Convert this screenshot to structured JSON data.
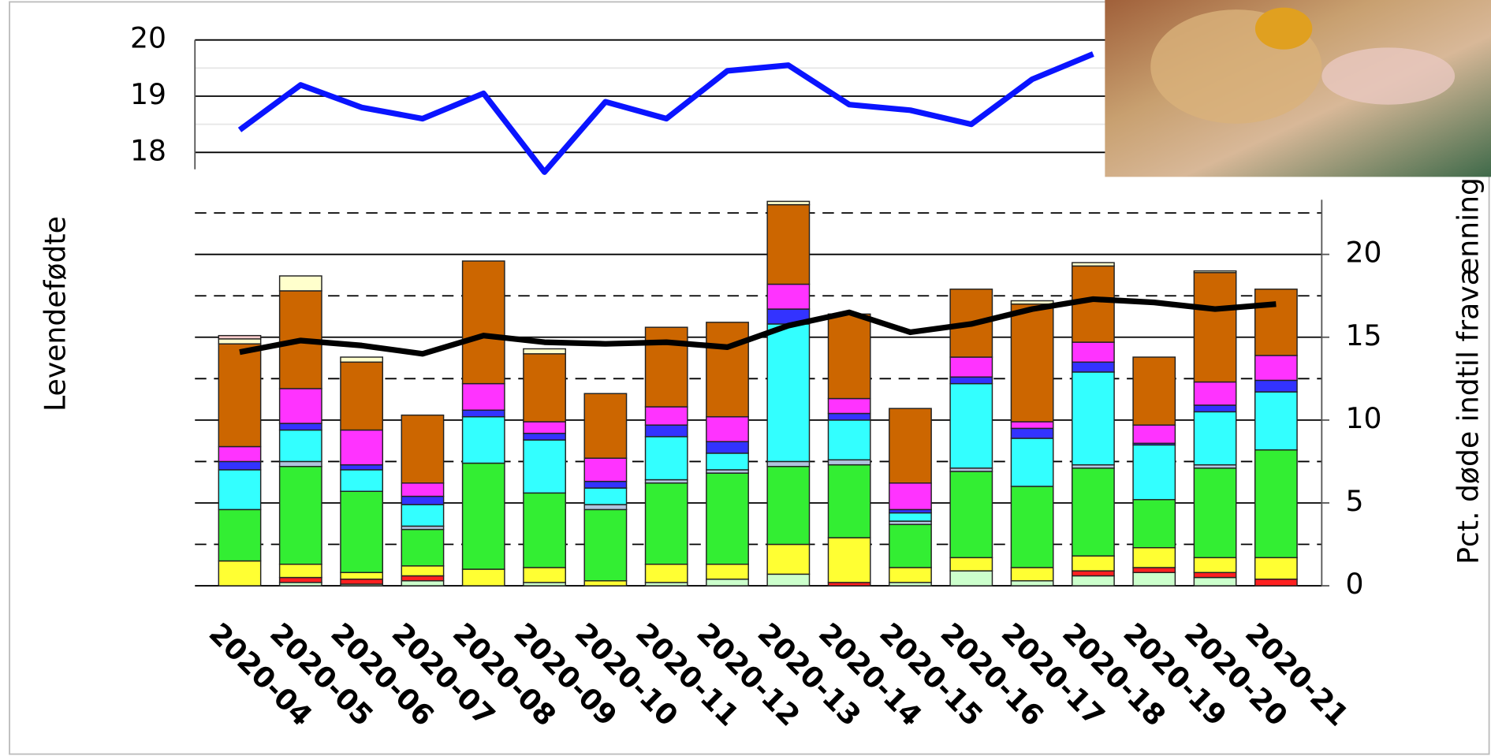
{
  "chart_data": [
    {
      "type": "line",
      "ylabel": "Levendefødte",
      "color": "#0a14ff",
      "values": [
        18.4,
        19.2,
        18.8,
        18.6,
        19.05,
        17.65,
        18.9,
        18.6,
        19.45,
        19.55,
        18.85,
        18.75,
        18.5,
        19.3,
        19.75,
        null,
        null,
        null
      ],
      "ylim": [
        17.7,
        20
      ],
      "yticks": [
        18,
        19,
        20
      ],
      "yminorticks": [
        18.5,
        19.5
      ],
      "grid": true
    },
    {
      "type": "bar",
      "stacked": true,
      "ylabel": "Pct. døde indtil fravænning",
      "y_axis_side": "right",
      "categories": [
        "2020-04",
        "2020-05",
        "2020-06",
        "2020-07",
        "2020-08",
        "2020-09",
        "2020-10",
        "2020-11",
        "2020-12",
        "2020-13",
        "2020-14",
        "2020-15",
        "2020-16",
        "2020-17",
        "2020-18",
        "2020-19",
        "2020-20",
        "2020-21"
      ],
      "ylim": [
        0,
        23.3
      ],
      "yticks": [
        0,
        5,
        10,
        15,
        20
      ],
      "yminorticks": [
        2.5,
        7.5,
        12.5,
        17.5,
        22.5
      ],
      "grid": true,
      "series": [
        {
          "color": "#ccffcc",
          "values": [
            0,
            0.2,
            0.1,
            0.3,
            0,
            0.2,
            0,
            0.2,
            0.4,
            0.7,
            0,
            0.2,
            0.9,
            0.3,
            0.6,
            0.8,
            0.5,
            0
          ]
        },
        {
          "color": "#ff2020",
          "values": [
            0,
            0.3,
            0.3,
            0.3,
            0,
            0,
            0,
            0,
            0,
            0,
            0.2,
            0,
            0,
            0,
            0.3,
            0.3,
            0.3,
            0.4
          ]
        },
        {
          "color": "#ffff33",
          "values": [
            1.5,
            0.8,
            0.4,
            0.6,
            1.0,
            0.9,
            0.3,
            1.1,
            0.9,
            1.8,
            2.7,
            0.9,
            0.8,
            0.8,
            0.9,
            1.2,
            0.9,
            1.3
          ]
        },
        {
          "color": "#33ee33",
          "values": [
            3.1,
            5.9,
            4.9,
            2.2,
            6.4,
            4.5,
            4.3,
            4.9,
            5.5,
            4.7,
            4.4,
            2.6,
            5.2,
            4.9,
            5.3,
            2.9,
            5.4,
            6.5
          ]
        },
        {
          "color": "#b0c4de",
          "values": [
            0,
            0.3,
            0,
            0.2,
            0,
            0,
            0.3,
            0.2,
            0.2,
            0.3,
            0.3,
            0.2,
            0.2,
            0,
            0.2,
            0,
            0.2,
            0
          ]
        },
        {
          "color": "#33ffff",
          "values": [
            2.4,
            1.9,
            1.3,
            1.3,
            2.8,
            3.2,
            1.0,
            2.6,
            1.0,
            8.3,
            2.4,
            0.5,
            5.1,
            2.9,
            5.6,
            3.3,
            3.2,
            3.5
          ]
        },
        {
          "color": "#3333ff",
          "values": [
            0.5,
            0.4,
            0.3,
            0.5,
            0.4,
            0.4,
            0.4,
            0.7,
            0.7,
            0.9,
            0.4,
            0.2,
            0.4,
            0.6,
            0.6,
            0.1,
            0.4,
            0.7
          ]
        },
        {
          "color": "#ff33ff",
          "values": [
            0.9,
            2.1,
            2.1,
            0.8,
            1.6,
            0.7,
            1.4,
            1.1,
            1.5,
            1.5,
            0.9,
            1.6,
            1.2,
            0.4,
            1.2,
            1.1,
            1.4,
            1.5
          ]
        },
        {
          "color": "#cc6600",
          "values": [
            6.2,
            5.9,
            4.1,
            4.1,
            7.4,
            4.1,
            3.9,
            4.8,
            5.7,
            4.8,
            5.1,
            4.5,
            4.1,
            7.1,
            4.6,
            4.1,
            6.6,
            4.0
          ]
        },
        {
          "color": "#ffffcc",
          "values": [
            0.3,
            0.9,
            0.3,
            0,
            0,
            0.3,
            0,
            0,
            0,
            0.2,
            0,
            0,
            0,
            0.2,
            0.2,
            0,
            0.1,
            0
          ]
        },
        {
          "color": "#ffcccc",
          "values": [
            0.2,
            0,
            0,
            0,
            0,
            0,
            0,
            0,
            0,
            0,
            0,
            0,
            0,
            0,
            0,
            0,
            0,
            0
          ]
        },
        {
          "type": "line",
          "color": "#000000",
          "values": [
            14.1,
            14.8,
            14.5,
            14.0,
            15.1,
            14.7,
            14.6,
            14.7,
            14.4,
            15.7,
            16.5,
            15.3,
            15.8,
            16.7,
            17.3,
            17.1,
            16.7,
            17.0
          ]
        }
      ]
    }
  ]
}
